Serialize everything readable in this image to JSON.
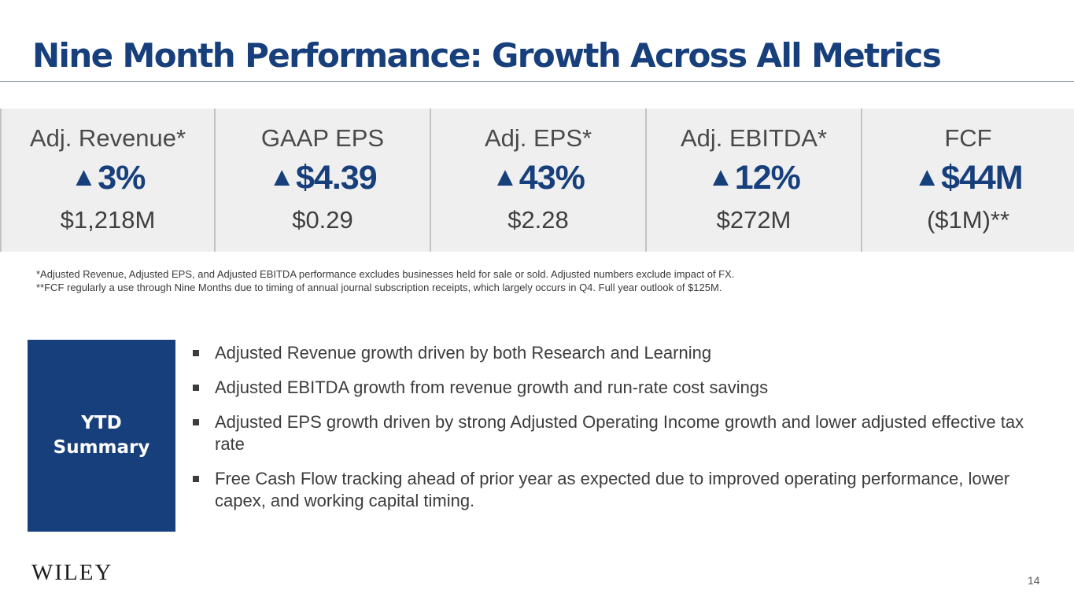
{
  "slide": {
    "title": "Nine Month Performance:  Growth Across All Metrics",
    "page_number": "14",
    "logo_text": "WILEY"
  },
  "metrics": [
    {
      "label": "Adj. Revenue*",
      "arrow": "▲",
      "change": "3%",
      "value": "$1,218M"
    },
    {
      "label": "GAAP EPS",
      "arrow": "▲",
      "change": "$4.39",
      "value": "$0.29"
    },
    {
      "label": "Adj. EPS*",
      "arrow": "▲",
      "change": "43%",
      "value": "$2.28"
    },
    {
      "label": "Adj. EBITDA*",
      "arrow": "▲",
      "change": "12%",
      "value": "$272M"
    },
    {
      "label": "FCF",
      "arrow": "▲",
      "change": "$44M",
      "value": "($1M)**"
    }
  ],
  "footnotes": [
    "*Adjusted Revenue, Adjusted EPS, and Adjusted EBITDA performance excludes businesses held for sale or sold.  Adjusted numbers exclude impact of FX.",
    "**FCF regularly a use through Nine Months due to timing of annual journal subscription receipts, which largely occurs in Q4.  Full year outlook of $125M."
  ],
  "summary": {
    "box_line1": "YTD",
    "box_line2": "Summary",
    "bullets": [
      "Adjusted Revenue growth driven by both Research and Learning",
      "Adjusted EBITDA growth from revenue growth and run-rate cost savings",
      "Adjusted EPS growth driven by strong Adjusted Operating Income growth and lower adjusted effective tax rate",
      "Free Cash Flow tracking ahead of prior year as expected due to improved operating performance, lower capex, and working capital timing."
    ]
  },
  "colors": {
    "brand_blue": "#173f7c",
    "metric_bg": "#efefef"
  }
}
